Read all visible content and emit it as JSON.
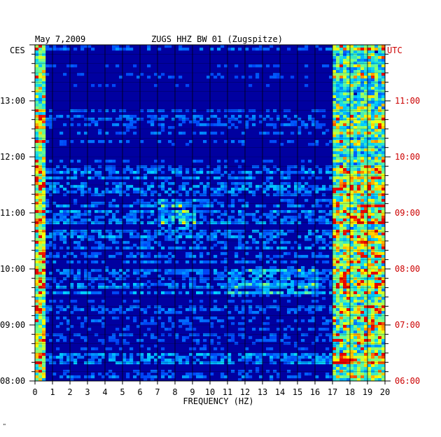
{
  "chart_data": {
    "type": "heatmap",
    "title": "ZUGS HHZ BW 01 (Zugspitze)",
    "date": "May 7,2009",
    "left_timezone": "CES",
    "right_timezone": "UTC",
    "xlabel": "FREQUENCY (HZ)",
    "xlim": [
      0,
      20
    ],
    "x_ticks": [
      "0",
      "1",
      "2",
      "3",
      "4",
      "5",
      "6",
      "7",
      "8",
      "9",
      "10",
      "11",
      "12",
      "13",
      "14",
      "15",
      "16",
      "17",
      "18",
      "19",
      "20"
    ],
    "left_y_ticks": [
      "13:00",
      "12:00",
      "11:00",
      "10:00",
      "09:00",
      "08:00"
    ],
    "right_y_ticks": [
      "11:00",
      "10:00",
      "09:00",
      "08:00",
      "07:00",
      "06:00"
    ],
    "time_range_ces": [
      "08:00",
      "14:00"
    ],
    "grid": true,
    "colors": {
      "background": "#0000aa",
      "low": "#0000cc",
      "mid": "#00aaff",
      "high": "#ffff00",
      "peak": "#ff0000",
      "utc_text": "#cc0000"
    }
  },
  "corner_mark": "\""
}
